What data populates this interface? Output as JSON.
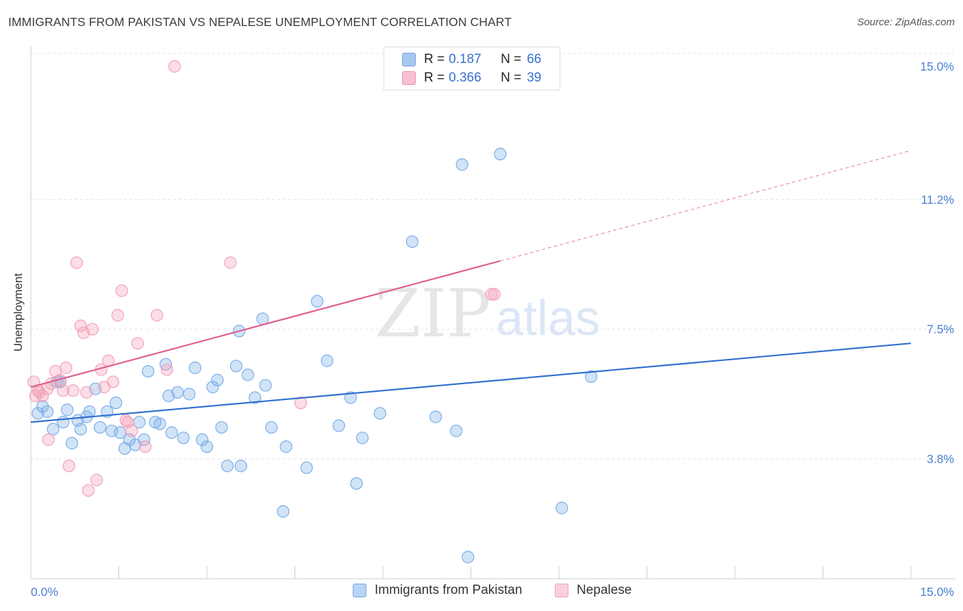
{
  "title": "IMMIGRANTS FROM PAKISTAN VS NEPALESE UNEMPLOYMENT CORRELATION CHART",
  "source": "Source: ZipAtlas.com",
  "watermark": {
    "zip": "ZIP",
    "atlas": "atlas"
  },
  "legend": {
    "rows": [
      {
        "r_label": "R =",
        "r_value": "0.187",
        "n_label": "N =",
        "n_value": "66",
        "color": "#a8c8f0",
        "border": "#6f9fe0"
      },
      {
        "r_label": "R =",
        "r_value": "0.366",
        "n_label": "N =",
        "n_value": "39",
        "color": "#f8c0d0",
        "border": "#e890ac"
      }
    ]
  },
  "bottom_legend": [
    {
      "label": "Immigrants from Pakistan",
      "color": "#b8d4f4",
      "border": "#7aa6e0"
    },
    {
      "label": "Nepalese",
      "color": "#fad0dc",
      "border": "#eba0b8"
    }
  ],
  "chart_data": {
    "type": "scatter",
    "title": "IMMIGRANTS FROM PAKISTAN VS NEPALESE UNEMPLOYMENT CORRELATION CHART",
    "xlabel": "",
    "ylabel": "Unemployment",
    "xlim": [
      0,
      15
    ],
    "ylim": [
      0,
      15.3
    ],
    "x_tick_labels": [
      "0.0%",
      "15.0%"
    ],
    "y_ticks": [
      3.8,
      7.5,
      11.2,
      15.0
    ],
    "y_tick_labels": [
      "3.8%",
      "7.5%",
      "11.2%",
      "15.0%"
    ],
    "grid": true,
    "series": [
      {
        "name": "Immigrants from Pakistan",
        "color": "#7aaee8",
        "line_color": "#2f6fd0",
        "trend": {
          "x": [
            0.0,
            15.0
          ],
          "y": [
            4.85,
            7.1
          ],
          "dashed_from": null
        },
        "points": [
          [
            0.12,
            5.1
          ],
          [
            0.2,
            5.3
          ],
          [
            0.28,
            5.15
          ],
          [
            0.38,
            4.65
          ],
          [
            0.45,
            6.0
          ],
          [
            0.55,
            4.85
          ],
          [
            0.62,
            5.2
          ],
          [
            0.7,
            4.25
          ],
          [
            0.8,
            4.9
          ],
          [
            0.85,
            4.65
          ],
          [
            0.95,
            5.0
          ],
          [
            1.0,
            5.15
          ],
          [
            1.1,
            5.8
          ],
          [
            1.18,
            4.7
          ],
          [
            1.3,
            5.15
          ],
          [
            1.38,
            4.6
          ],
          [
            1.45,
            5.4
          ],
          [
            1.52,
            4.55
          ],
          [
            1.6,
            4.1
          ],
          [
            1.68,
            4.35
          ],
          [
            1.78,
            4.2
          ],
          [
            1.85,
            4.85
          ],
          [
            1.93,
            4.35
          ],
          [
            2.0,
            6.3
          ],
          [
            2.12,
            4.85
          ],
          [
            2.2,
            4.8
          ],
          [
            2.3,
            6.5
          ],
          [
            2.4,
            4.55
          ],
          [
            2.5,
            5.7
          ],
          [
            2.6,
            4.4
          ],
          [
            2.7,
            5.65
          ],
          [
            2.8,
            6.4
          ],
          [
            2.92,
            4.35
          ],
          [
            3.0,
            4.15
          ],
          [
            3.1,
            5.85
          ],
          [
            3.18,
            6.05
          ],
          [
            3.25,
            4.7
          ],
          [
            3.35,
            3.6
          ],
          [
            3.5,
            6.45
          ],
          [
            3.58,
            3.6
          ],
          [
            3.7,
            6.2
          ],
          [
            3.82,
            5.55
          ],
          [
            3.95,
            7.8
          ],
          [
            4.0,
            5.9
          ],
          [
            4.1,
            4.7
          ],
          [
            4.35,
            4.15
          ],
          [
            4.7,
            3.55
          ],
          [
            4.88,
            8.3
          ],
          [
            5.05,
            6.6
          ],
          [
            5.25,
            4.75
          ],
          [
            5.45,
            5.55
          ],
          [
            5.65,
            4.4
          ],
          [
            5.95,
            5.1
          ],
          [
            6.5,
            10.0
          ],
          [
            6.9,
            5.0
          ],
          [
            7.25,
            4.6
          ],
          [
            7.35,
            12.2
          ],
          [
            8.0,
            12.5
          ],
          [
            9.55,
            6.15
          ],
          [
            4.3,
            2.3
          ],
          [
            5.55,
            3.1
          ],
          [
            7.45,
            1.0
          ],
          [
            9.05,
            2.4
          ],
          [
            3.55,
            7.45
          ],
          [
            2.35,
            5.6
          ],
          [
            0.5,
            6.0
          ]
        ]
      },
      {
        "name": "Nepalese",
        "color": "#f4a0b8",
        "line_color": "#e0608e",
        "trend": {
          "x": [
            0.0,
            15.0
          ],
          "y": [
            5.85,
            12.6
          ],
          "dashed_from": 8.0
        },
        "points": [
          [
            0.05,
            6.0
          ],
          [
            0.12,
            5.75
          ],
          [
            0.2,
            5.6
          ],
          [
            0.28,
            5.8
          ],
          [
            0.35,
            5.95
          ],
          [
            0.42,
            6.3
          ],
          [
            0.5,
            6.05
          ],
          [
            0.55,
            5.75
          ],
          [
            0.6,
            6.4
          ],
          [
            0.65,
            3.6
          ],
          [
            0.72,
            5.75
          ],
          [
            0.78,
            9.4
          ],
          [
            0.85,
            7.6
          ],
          [
            0.9,
            7.4
          ],
          [
            0.98,
            2.9
          ],
          [
            1.05,
            7.5
          ],
          [
            1.12,
            3.2
          ],
          [
            1.2,
            6.35
          ],
          [
            1.25,
            5.85
          ],
          [
            1.32,
            6.6
          ],
          [
            1.4,
            6.0
          ],
          [
            1.48,
            7.9
          ],
          [
            1.55,
            8.6
          ],
          [
            1.62,
            4.9
          ],
          [
            1.72,
            4.6
          ],
          [
            1.82,
            7.1
          ],
          [
            1.95,
            4.15
          ],
          [
            2.15,
            7.9
          ],
          [
            2.32,
            6.35
          ],
          [
            2.45,
            15.0
          ],
          [
            3.4,
            9.4
          ],
          [
            4.6,
            5.4
          ],
          [
            7.85,
            8.5
          ],
          [
            0.08,
            5.6
          ],
          [
            0.3,
            4.35
          ],
          [
            0.15,
            5.7
          ],
          [
            0.95,
            5.7
          ],
          [
            1.65,
            4.85
          ],
          [
            7.9,
            8.5
          ]
        ]
      }
    ]
  }
}
